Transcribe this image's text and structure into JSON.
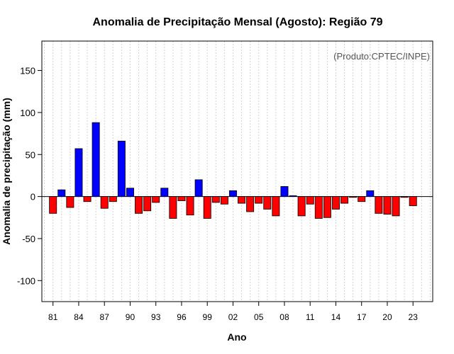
{
  "chart_data": {
    "type": "bar",
    "title": "Anomalia de Precipitação Mensal (Agosto): Região 79",
    "xlabel": "Ano",
    "ylabel": "Anomalia de precipitação (mm)",
    "annotation": "(Produto:CPTEC/INPE)",
    "ylim": [
      -125,
      185
    ],
    "yticks": [
      -100,
      -50,
      0,
      50,
      100,
      150
    ],
    "xlim": [
      1979.7,
      2025.3
    ],
    "xticks": [
      {
        "year": 1981,
        "label": "81"
      },
      {
        "year": 1984,
        "label": "84"
      },
      {
        "year": 1987,
        "label": "87"
      },
      {
        "year": 1990,
        "label": "90"
      },
      {
        "year": 1993,
        "label": "93"
      },
      {
        "year": 1996,
        "label": "96"
      },
      {
        "year": 1999,
        "label": "99"
      },
      {
        "year": 2002,
        "label": "02"
      },
      {
        "year": 2005,
        "label": "05"
      },
      {
        "year": 2008,
        "label": "08"
      },
      {
        "year": 2011,
        "label": "11"
      },
      {
        "year": 2014,
        "label": "14"
      },
      {
        "year": 2017,
        "label": "17"
      },
      {
        "year": 2020,
        "label": "20"
      },
      {
        "year": 2023,
        "label": "23"
      }
    ],
    "grid": true,
    "colors": {
      "positive": "#0000ff",
      "negative": "#ff0000",
      "outline": "#000000",
      "grid": "#d3d3d3"
    },
    "years": [
      1981,
      1982,
      1983,
      1984,
      1985,
      1986,
      1987,
      1988,
      1989,
      1990,
      1991,
      1992,
      1993,
      1994,
      1995,
      1996,
      1997,
      1998,
      1999,
      2000,
      2001,
      2002,
      2003,
      2004,
      2005,
      2006,
      2007,
      2008,
      2009,
      2010,
      2011,
      2012,
      2013,
      2014,
      2015,
      2016,
      2017,
      2018,
      2019,
      2020,
      2021,
      2022,
      2023
    ],
    "values": [
      -20,
      8,
      -13,
      57,
      -6,
      88,
      -14,
      -6,
      66,
      10,
      -20,
      -17,
      -7,
      10,
      -26,
      -5,
      -22,
      20,
      -26,
      -7,
      -9,
      7,
      -8,
      -18,
      -8,
      -15,
      -23,
      12,
      1,
      -23,
      -9,
      -26,
      -25,
      -15,
      -8,
      -1,
      -6,
      7,
      -20,
      -21,
      -23,
      -1,
      -11
    ]
  }
}
